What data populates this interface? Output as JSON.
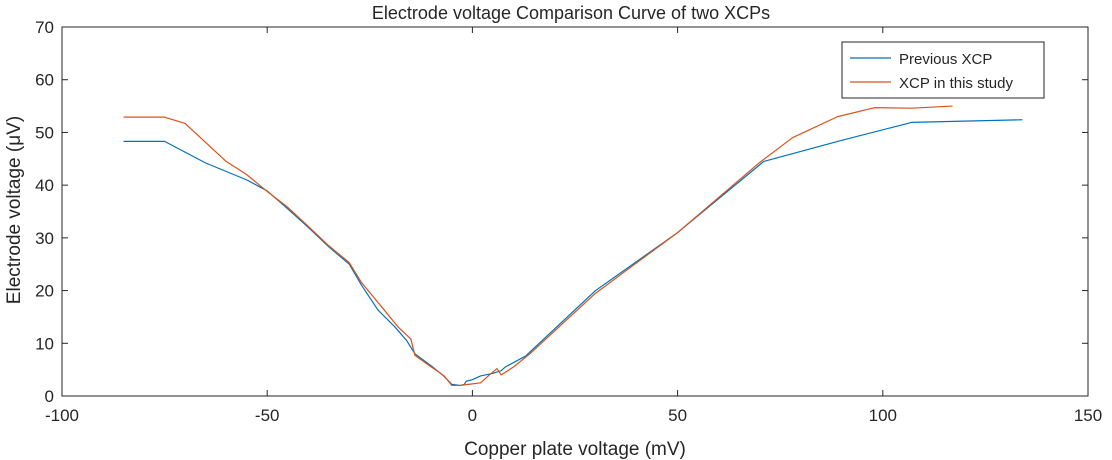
{
  "chart_data": {
    "type": "line",
    "title": "Electrode voltage Comparison Curve of two XCPs",
    "xlabel": "Copper plate voltage (mV)",
    "ylabel": "Electrode voltage (μV)",
    "xlim": [
      -100,
      150
    ],
    "ylim": [
      0,
      70
    ],
    "xticks": [
      -100,
      -50,
      0,
      50,
      100,
      150
    ],
    "yticks": [
      0,
      10,
      20,
      30,
      40,
      50,
      60,
      70
    ],
    "grid": false,
    "legend_position": "top-right",
    "series": [
      {
        "name": "Previous XCP",
        "color": "#0072BD",
        "points": [
          [
            -85,
            48.3
          ],
          [
            -75,
            48.3
          ],
          [
            -65,
            44.2
          ],
          [
            -55,
            41.0
          ],
          [
            -50,
            38.9
          ],
          [
            -45,
            35.5
          ],
          [
            -40,
            32.0
          ],
          [
            -35,
            28.3
          ],
          [
            -30,
            25.0
          ],
          [
            -27,
            21.0
          ],
          [
            -23,
            16.3
          ],
          [
            -19,
            13.2
          ],
          [
            -16,
            10.5
          ],
          [
            -14,
            8.0
          ],
          [
            -10,
            5.7
          ],
          [
            -7,
            3.8
          ],
          [
            -5,
            2.2
          ],
          [
            -3,
            2.0
          ],
          [
            -2,
            2.2
          ],
          [
            -1.5,
            2.8
          ],
          [
            0,
            3.1
          ],
          [
            2,
            3.8
          ],
          [
            5,
            4.3
          ],
          [
            7,
            4.8
          ],
          [
            8,
            5.5
          ],
          [
            13,
            7.6
          ],
          [
            30,
            20.0
          ],
          [
            50,
            31.0
          ],
          [
            71,
            44.5
          ],
          [
            90,
            48.5
          ],
          [
            107,
            51.9
          ],
          [
            134,
            52.4
          ]
        ]
      },
      {
        "name": "XCP in this study",
        "color": "#D95319",
        "points": [
          [
            -85,
            52.9
          ],
          [
            -75,
            52.9
          ],
          [
            -70,
            51.7
          ],
          [
            -60,
            44.5
          ],
          [
            -55,
            42.0
          ],
          [
            -50,
            38.8
          ],
          [
            -45,
            35.8
          ],
          [
            -40,
            32.2
          ],
          [
            -35,
            28.5
          ],
          [
            -30,
            25.3
          ],
          [
            -27,
            21.5
          ],
          [
            -22,
            16.8
          ],
          [
            -18,
            13.0
          ],
          [
            -15,
            10.8
          ],
          [
            -14,
            7.7
          ],
          [
            -10,
            5.5
          ],
          [
            -7,
            3.9
          ],
          [
            -5,
            2.0
          ],
          [
            -3,
            2.0
          ],
          [
            -1,
            2.2
          ],
          [
            0,
            2.3
          ],
          [
            2,
            2.5
          ],
          [
            4,
            3.9
          ],
          [
            6,
            5.2
          ],
          [
            7,
            4.0
          ],
          [
            10,
            5.5
          ],
          [
            14,
            8.0
          ],
          [
            30,
            19.5
          ],
          [
            50,
            31.0
          ],
          [
            70,
            44.3
          ],
          [
            78,
            49.0
          ],
          [
            89,
            53.0
          ],
          [
            98,
            54.7
          ],
          [
            107,
            54.6
          ],
          [
            117,
            55.0
          ]
        ]
      }
    ]
  }
}
